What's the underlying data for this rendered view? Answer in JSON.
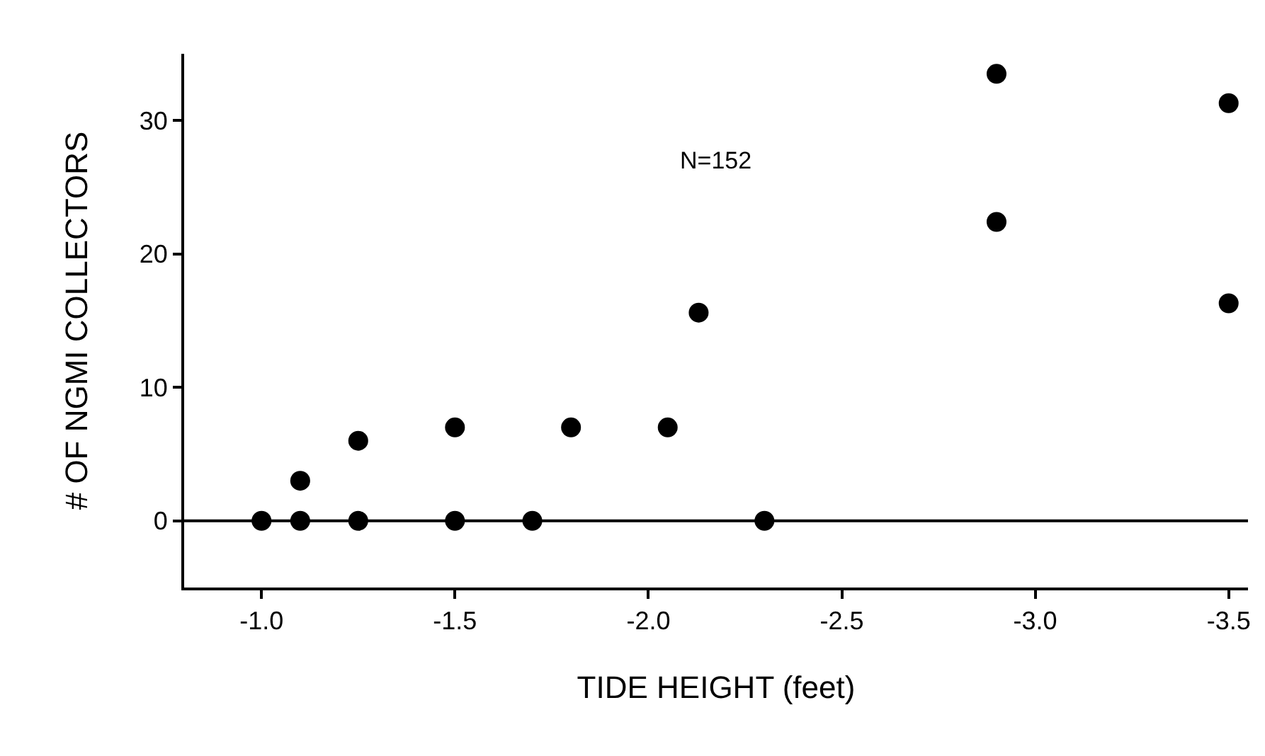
{
  "chart_data": {
    "type": "scatter",
    "xlabel": "TIDE HEIGHT (feet)",
    "ylabel": "# OF NGMI COLLECTORS",
    "annotations": [
      "N=152"
    ],
    "x": [
      -1.0,
      -1.1,
      -1.1,
      -1.25,
      -1.25,
      -1.5,
      -1.5,
      -1.7,
      -1.8,
      -2.05,
      -2.13,
      -2.3,
      -2.9,
      -2.9,
      -3.5,
      -3.5
    ],
    "series": [
      {
        "color": "#000000",
        "values": [
          0,
          0,
          3,
          0,
          6,
          0,
          7,
          0,
          7,
          7,
          15.6,
          0,
          33.5,
          22.4,
          31.3,
          16.3
        ]
      }
    ],
    "xlim": [
      -0.8,
      -3.55
    ],
    "xticks": [
      {
        "value": -1.0,
        "label": "-1.0"
      },
      {
        "value": -1.5,
        "label": "-1.5"
      },
      {
        "value": -2.0,
        "label": "-2.0"
      },
      {
        "value": -2.5,
        "label": "-2.5"
      },
      {
        "value": -3.0,
        "label": "-3.0"
      },
      {
        "value": -3.5,
        "label": "-3.5"
      }
    ],
    "ylim": [
      -5,
      35
    ],
    "yticks": [
      0,
      10,
      20,
      30
    ],
    "ref_lines": [
      {
        "axis": "y",
        "value": 0,
        "color": "#000000",
        "line_style": "solid"
      }
    ],
    "marker": "circle",
    "grid": false
  }
}
